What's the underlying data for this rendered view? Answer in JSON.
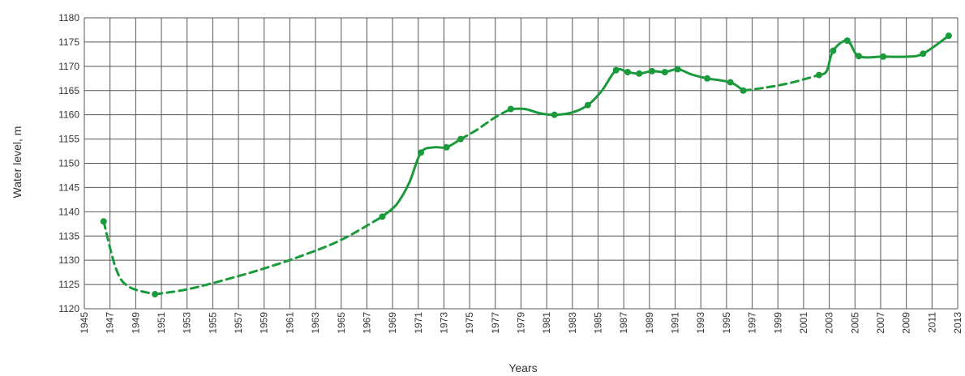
{
  "chart_data": {
    "type": "line",
    "title": "",
    "xlabel": "Years",
    "ylabel": "Water level, m",
    "xlim": [
      1945,
      2013
    ],
    "ylim": [
      1120,
      1180
    ],
    "x_ticks": [
      1945,
      1947,
      1949,
      1951,
      1953,
      1955,
      1957,
      1959,
      1961,
      1963,
      1965,
      1967,
      1969,
      1971,
      1973,
      1975,
      1977,
      1979,
      1981,
      1983,
      1985,
      1987,
      1989,
      1991,
      1993,
      1995,
      1997,
      1999,
      2001,
      2003,
      2005,
      2007,
      2009,
      2011,
      2013
    ],
    "y_ticks": [
      1120,
      1125,
      1130,
      1135,
      1140,
      1145,
      1150,
      1155,
      1160,
      1165,
      1170,
      1175,
      1180
    ],
    "grid": true,
    "color": "#1a9a3a",
    "segments": [
      {
        "style": "dashed",
        "points": [
          [
            1946.5,
            1138
          ],
          [
            1947.5,
            1128
          ],
          [
            1948.5,
            1124.5
          ],
          [
            1950.5,
            1123
          ]
        ]
      },
      {
        "style": "dashed",
        "points": [
          [
            1950.5,
            1123
          ],
          [
            1953,
            1124
          ],
          [
            1956,
            1126
          ],
          [
            1959,
            1128.3
          ],
          [
            1962,
            1131
          ],
          [
            1965,
            1134.2
          ],
          [
            1968.2,
            1139
          ]
        ]
      },
      {
        "style": "solid",
        "points": [
          [
            1968.2,
            1139
          ],
          [
            1969.3,
            1141.5
          ],
          [
            1970.3,
            1146
          ],
          [
            1971.2,
            1152.2
          ],
          [
            1972.2,
            1153.3
          ],
          [
            1973.2,
            1153.3
          ],
          [
            1974.3,
            1155
          ]
        ]
      },
      {
        "style": "dashed",
        "points": [
          [
            1974.3,
            1155
          ],
          [
            1975.5,
            1156.8
          ],
          [
            1977,
            1159.5
          ],
          [
            1978.2,
            1161.2
          ]
        ]
      },
      {
        "style": "solid",
        "points": [
          [
            1978.2,
            1161.2
          ],
          [
            1979.3,
            1161.2
          ],
          [
            1980.5,
            1160.3
          ],
          [
            1981.6,
            1160
          ],
          [
            1983,
            1160.5
          ],
          [
            1984.2,
            1162
          ],
          [
            1985.3,
            1165
          ],
          [
            1986.4,
            1169.2
          ],
          [
            1987.3,
            1168.8
          ],
          [
            1988.2,
            1168.5
          ],
          [
            1989.2,
            1169
          ],
          [
            1990.2,
            1168.8
          ],
          [
            1991.2,
            1169.4
          ],
          [
            1992.3,
            1168.3
          ],
          [
            1993.5,
            1167.5
          ],
          [
            1995.3,
            1166.7
          ],
          [
            1996.3,
            1165
          ]
        ]
      },
      {
        "style": "dashed",
        "points": [
          [
            1996.3,
            1165
          ],
          [
            1998,
            1165.6
          ],
          [
            2000,
            1166.6
          ],
          [
            2002.2,
            1168.2
          ]
        ]
      },
      {
        "style": "solid",
        "points": [
          [
            2002.2,
            1168.2
          ],
          [
            2002.8,
            1169
          ],
          [
            2003.3,
            1173.2
          ],
          [
            2004.4,
            1175.3
          ],
          [
            2005.3,
            1172.1
          ],
          [
            2007.2,
            1172
          ],
          [
            2009,
            1172
          ],
          [
            2010.3,
            1172.6
          ],
          [
            2012.3,
            1176.3
          ]
        ]
      }
    ],
    "markers": [
      [
        1946.5,
        1138
      ],
      [
        1950.5,
        1123
      ],
      [
        1968.2,
        1139
      ],
      [
        1971.2,
        1152.2
      ],
      [
        1973.2,
        1153.3
      ],
      [
        1974.3,
        1155
      ],
      [
        1978.2,
        1161.2
      ],
      [
        1981.6,
        1160
      ],
      [
        1984.2,
        1162
      ],
      [
        1986.4,
        1169.2
      ],
      [
        1987.3,
        1168.8
      ],
      [
        1988.2,
        1168.5
      ],
      [
        1989.2,
        1169
      ],
      [
        1990.2,
        1168.8
      ],
      [
        1991.2,
        1169.4
      ],
      [
        1993.5,
        1167.5
      ],
      [
        1995.3,
        1166.7
      ],
      [
        1996.3,
        1165
      ],
      [
        2002.2,
        1168.2
      ],
      [
        2003.3,
        1173.2
      ],
      [
        2004.4,
        1175.3
      ],
      [
        2005.3,
        1172.1
      ],
      [
        2007.2,
        1172
      ],
      [
        2010.3,
        1172.6
      ],
      [
        2012.3,
        1176.3
      ]
    ]
  }
}
